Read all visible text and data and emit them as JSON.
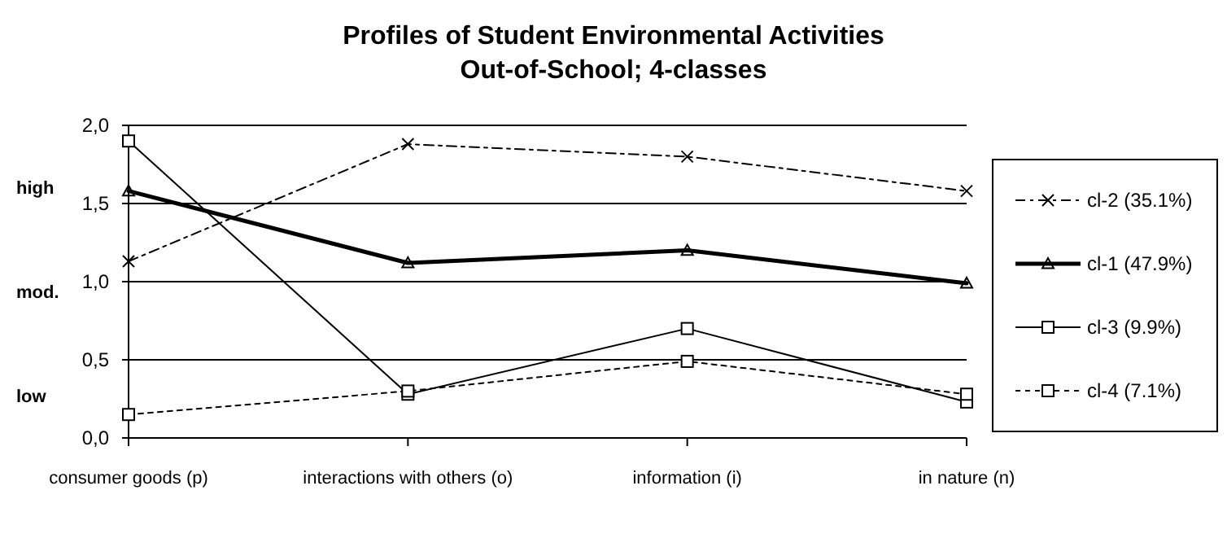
{
  "chart_data": {
    "type": "line",
    "title": "Profiles of Student Environmental Activities",
    "subtitle": "Out-of-School; 4-classes",
    "categories": [
      "consumer goods (p)",
      "interactions with others (o)",
      "information (i)",
      "in nature (n)"
    ],
    "series": [
      {
        "name": "cl-2 (35.1%)",
        "color": "#000000",
        "values": [
          1.13,
          1.88,
          1.8,
          1.58
        ],
        "marker": "cross",
        "line_style": "dashed"
      },
      {
        "name": "cl-1 (47.9%)",
        "color": "#000000",
        "values": [
          1.58,
          1.12,
          1.2,
          0.99
        ],
        "marker": "triangle",
        "line_style": "solid"
      },
      {
        "name": "cl-3 (9.9%)",
        "color": "#000000",
        "values": [
          1.9,
          0.28,
          0.7,
          0.23
        ],
        "marker": "square",
        "line_style": "solid"
      },
      {
        "name": "cl-4 (7.1%)",
        "color": "#000000",
        "values": [
          0.15,
          0.3,
          0.49,
          0.28
        ],
        "marker": "square",
        "line_style": "dotted"
      }
    ],
    "ylim": [
      0,
      2
    ],
    "yticks": [
      {
        "value": 0,
        "label": "0,0"
      },
      {
        "value": 0.5,
        "label": "0,5"
      },
      {
        "value": 1,
        "label": "1,0"
      },
      {
        "value": 1.5,
        "label": "1,5"
      },
      {
        "value": 2,
        "label": "2,0"
      }
    ],
    "annotations": [
      "high",
      "mod.",
      "low"
    ],
    "grid": "y",
    "legend": "right"
  }
}
